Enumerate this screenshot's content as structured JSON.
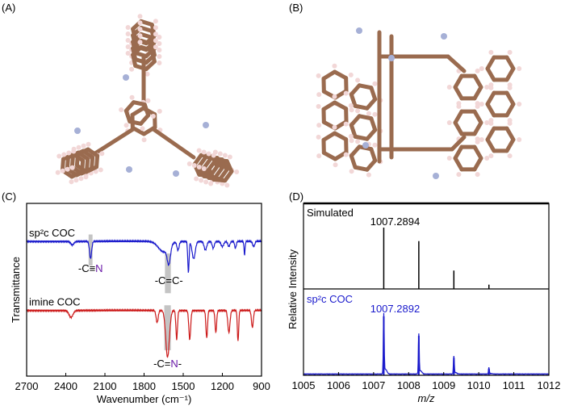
{
  "panels": {
    "a": "(A)",
    "b": "(B)",
    "c": "(C)",
    "d": "(D)"
  },
  "colors": {
    "bond": "#9a6b4f",
    "hydrogen": "#f2d7d7",
    "nitrogen": "#a6b0d6",
    "ir_sp2c": "#1a1acc",
    "ir_imine": "#cc1a1a",
    "highlight": "#c4c4c4",
    "nitrogen_text": "#6a1aa8",
    "ms_measured": "#1a1acc",
    "ms_simulated": "#000000"
  },
  "chart_data": [
    {
      "panel": "(C)",
      "type": "line",
      "xlabel": "Wavenumber (cm⁻¹)",
      "ylabel": "Transmittance",
      "xlim": [
        2700,
        900
      ],
      "xreversed": true,
      "xticks": [
        "2700",
        "2400",
        "2100",
        "1800",
        "1500",
        "1200",
        "900"
      ],
      "ylim": [
        0,
        1
      ],
      "series": [
        {
          "name": "sp²c COC",
          "baseline": 0.78,
          "dips": [
            [
              2350,
              0.02,
              12
            ],
            [
              2210,
              0.1,
              8
            ],
            [
              1650,
              0.06,
              40
            ],
            [
              1610,
              0.1,
              12
            ],
            [
              1540,
              0.05,
              8
            ],
            [
              1460,
              0.18,
              5
            ],
            [
              1420,
              0.1,
              12
            ],
            [
              1330,
              0.05,
              10
            ],
            [
              1270,
              0.04,
              8
            ],
            [
              1200,
              0.03,
              10
            ],
            [
              1150,
              0.03,
              8
            ],
            [
              1100,
              0.04,
              6
            ],
            [
              1030,
              0.08,
              4
            ],
            [
              960,
              0.03,
              8
            ]
          ]
        },
        {
          "name": "imine COC",
          "baseline": 0.38,
          "dips": [
            [
              2360,
              0.04,
              15
            ],
            [
              1700,
              0.07,
              8
            ],
            [
              1620,
              0.27,
              14
            ],
            [
              1550,
              0.17,
              6
            ],
            [
              1450,
              0.17,
              7
            ],
            [
              1320,
              0.16,
              6
            ],
            [
              1250,
              0.13,
              6
            ],
            [
              1150,
              0.13,
              8
            ],
            [
              1080,
              0.18,
              5
            ],
            [
              970,
              0.1,
              7
            ]
          ]
        }
      ],
      "annotations": [
        {
          "text": "-C≡",
          "accent": "N",
          "x": 2210
        },
        {
          "text": "-C=C-",
          "x": 1610
        },
        {
          "text": "-C=",
          "accent": "N",
          "suffix": "-",
          "x": 1620
        }
      ]
    },
    {
      "panel": "(D)",
      "type": "bar",
      "xlabel": "m/z",
      "ylabel": "Relative Intensity",
      "xlim": [
        1005,
        1012
      ],
      "xticks": [
        "1005",
        "1006",
        "1007",
        "1008",
        "1009",
        "1010",
        "1011",
        "1012"
      ],
      "series": [
        {
          "name": "Simulated",
          "peak_label": "1007.2894",
          "x": [
            1007.29,
            1008.29,
            1009.29,
            1010.29
          ],
          "values": [
            1.0,
            0.78,
            0.3,
            0.07
          ]
        },
        {
          "name": "sp²c COC",
          "peak_label": "1007.2892",
          "x": [
            1007.29,
            1008.29,
            1009.29,
            1010.29
          ],
          "values": [
            1.0,
            0.67,
            0.3,
            0.11
          ]
        }
      ]
    }
  ]
}
